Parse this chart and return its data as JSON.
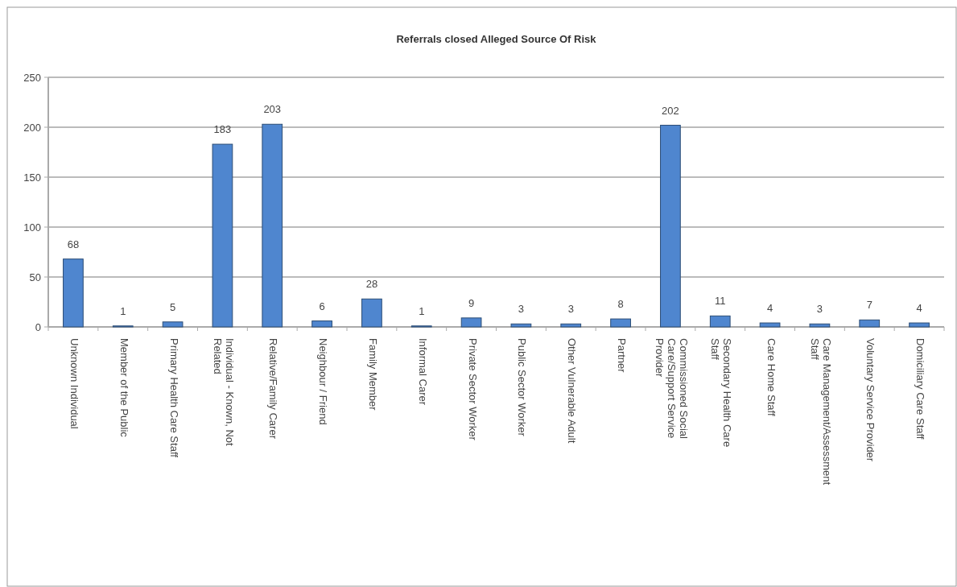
{
  "chart_data": {
    "type": "bar",
    "title": "Referrals closed Alleged Source Of Risk",
    "categories": [
      "Unknown Individual",
      "Member of the Public",
      "Primary Health Care Staff",
      "Individual - Known, Not Related",
      "Relative/Family Carer",
      "Neighbour / Friend",
      "Family Member",
      "Informal Carer",
      "Private Sector Worker",
      "Public Sector Worker",
      "Other Vulnerable Adult",
      "Partner",
      "Commissioned Social Care/Support Service Provider",
      "Secondary Health Care Staff",
      "Care Home Staff",
      "Care Management/Assessment Staff",
      "Voluntary Service Provider",
      "Domiciliary Care Staff"
    ],
    "values": [
      68,
      1,
      5,
      183,
      203,
      6,
      28,
      1,
      9,
      3,
      3,
      8,
      202,
      11,
      4,
      3,
      7,
      4
    ],
    "color": "#4f86cf",
    "ylim": [
      0,
      250
    ],
    "yticks": [
      0,
      50,
      100,
      150,
      200,
      250
    ],
    "grid": "y",
    "data_labels": true
  }
}
